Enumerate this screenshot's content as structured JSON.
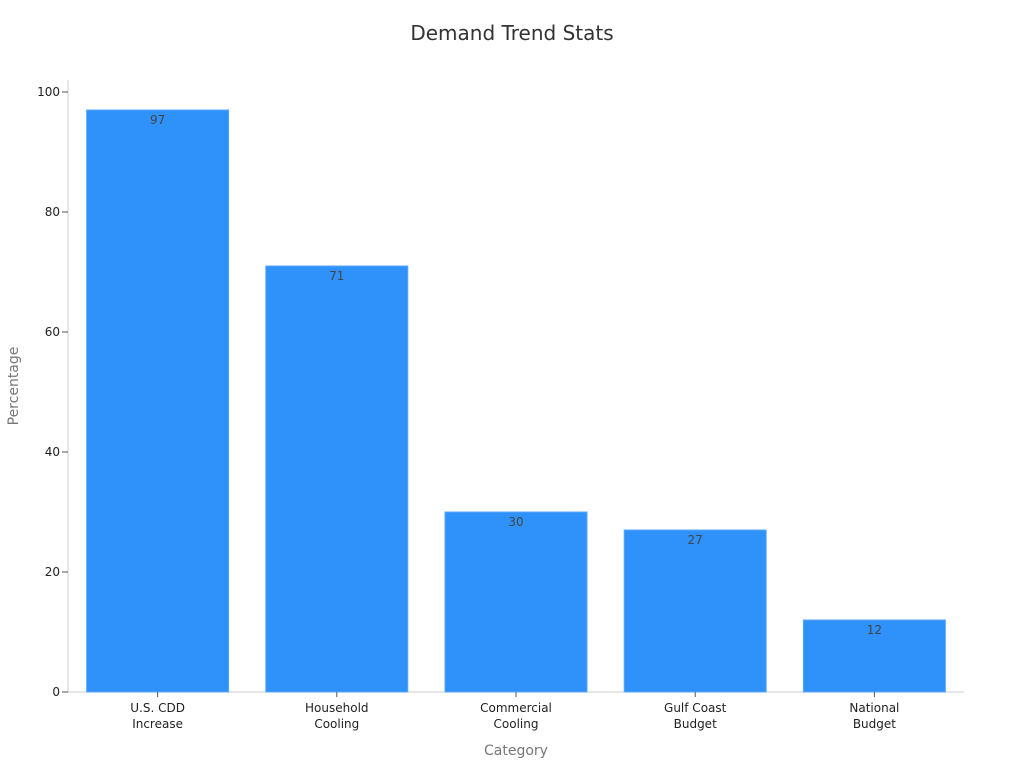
{
  "chart_data": {
    "type": "bar",
    "title": "Demand Trend Stats",
    "xlabel": "Category",
    "ylabel": "Percentage",
    "categories": [
      [
        "U.S. CDD",
        "Increase"
      ],
      [
        "Household",
        "Cooling"
      ],
      [
        "Commercial",
        "Cooling"
      ],
      [
        "Gulf Coast",
        "Budget"
      ],
      [
        "National",
        "Budget"
      ]
    ],
    "values": [
      97,
      71,
      30,
      27,
      12
    ],
    "ylim": [
      0,
      100
    ],
    "yticks": [
      0,
      20,
      40,
      60,
      80,
      100
    ],
    "grid": false,
    "legend": "none",
    "bar_color": "#2f91fa",
    "bar_edge_color": "#5aa7f7"
  }
}
